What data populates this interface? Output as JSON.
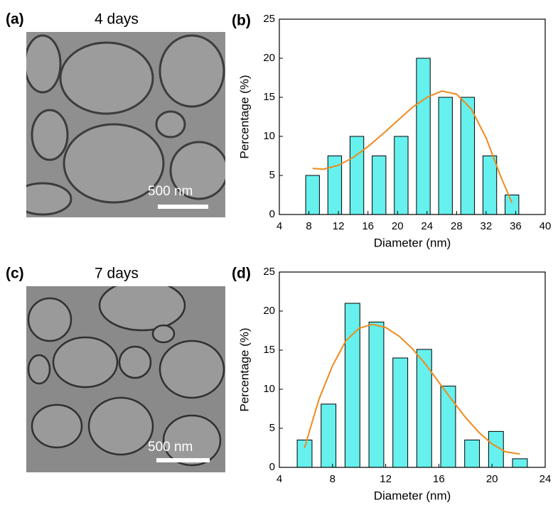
{
  "panels": [
    {
      "label": "(a)",
      "caption": "4 days",
      "scale_bar": "500 nm"
    },
    {
      "label": "(c)",
      "caption": "7 days",
      "scale_bar": "500 nm"
    }
  ],
  "chart_data": [
    {
      "type": "bar",
      "panel_label": "(b)",
      "xlabel": "Diameter (nm)",
      "ylabel": "Percentage (%)",
      "x": [
        8.5,
        11.5,
        14.5,
        17.5,
        20.5,
        23.5,
        26.5,
        29.5,
        32.5,
        35.5
      ],
      "values": [
        5,
        7.5,
        10,
        7.5,
        10,
        20,
        15,
        15,
        7.5,
        2.5
      ],
      "color": "#66f0ee",
      "fit": {
        "x": [
          8.5,
          10,
          12,
          14,
          16,
          18,
          20,
          22,
          24,
          26,
          28,
          30,
          32,
          34,
          35.5
        ],
        "values": [
          5.9,
          5.8,
          6.3,
          7.3,
          8.7,
          10.3,
          12.0,
          13.7,
          15.0,
          15.8,
          15.4,
          13.5,
          9.8,
          4.8,
          1.5
        ],
        "color": "#f08a1c"
      },
      "xlim": [
        4,
        40
      ],
      "xticks": [
        4,
        8,
        12,
        16,
        20,
        24,
        28,
        32,
        36,
        40
      ],
      "ylim": [
        0,
        25
      ],
      "yticks": [
        0,
        5,
        10,
        15,
        20,
        25
      ],
      "grid": false
    },
    {
      "type": "bar",
      "panel_label": "(d)",
      "xlabel": "Diameter (nm)",
      "ylabel": "Percentage (%)",
      "x": [
        5.9,
        7.7,
        9.5,
        11.3,
        13.1,
        14.9,
        16.7,
        18.5,
        20.3,
        22.1
      ],
      "values": [
        3.5,
        8.1,
        21,
        18.6,
        14,
        15.1,
        10.4,
        3.5,
        4.6,
        1.1
      ],
      "color": "#66f0ee",
      "fit": {
        "x": [
          5.9,
          6.5,
          7,
          8,
          9,
          10,
          11,
          12,
          13,
          14,
          15,
          16,
          17,
          18,
          19,
          20,
          21,
          22.1
        ],
        "values": [
          2.5,
          6,
          8.8,
          13,
          16.2,
          17.8,
          18.3,
          17.9,
          16.8,
          15.2,
          13.2,
          10.9,
          8.6,
          6.4,
          4.5,
          3.0,
          2.0,
          1.7
        ],
        "color": "#f08a1c"
      },
      "xlim": [
        4,
        24
      ],
      "xticks": [
        4,
        8,
        12,
        16,
        20,
        24
      ],
      "ylim": [
        0,
        25
      ],
      "yticks": [
        0,
        5,
        10,
        15,
        20,
        25
      ],
      "grid": false
    }
  ]
}
